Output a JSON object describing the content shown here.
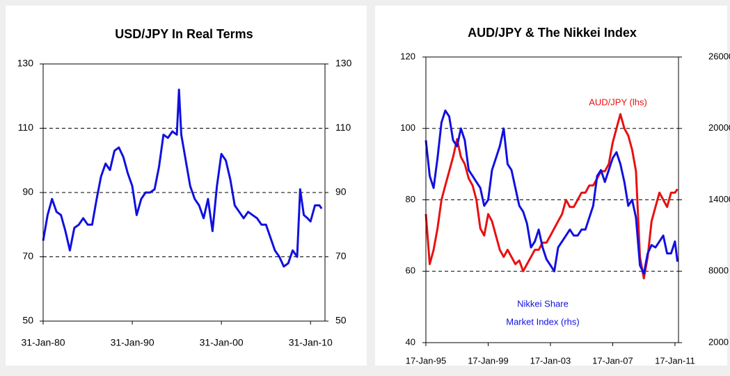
{
  "chart_data": [
    {
      "type": "line",
      "title": "USD/JPY In Real Terms",
      "x": [
        "1980-01-31",
        "1980-07-31",
        "1981-01-31",
        "1981-07-31",
        "1982-01-31",
        "1982-07-31",
        "1983-01-31",
        "1983-07-31",
        "1984-01-31",
        "1984-07-31",
        "1985-01-31",
        "1985-07-31",
        "1986-01-31",
        "1986-07-31",
        "1987-01-31",
        "1987-07-31",
        "1988-01-31",
        "1988-07-31",
        "1989-01-31",
        "1989-07-31",
        "1990-01-31",
        "1990-07-31",
        "1991-01-31",
        "1991-07-31",
        "1992-01-31",
        "1992-07-31",
        "1993-01-31",
        "1993-07-31",
        "1994-01-31",
        "1994-07-31",
        "1995-01-31",
        "1995-04-30",
        "1995-07-31",
        "1996-01-31",
        "1996-07-31",
        "1997-01-31",
        "1997-07-31",
        "1998-01-31",
        "1998-07-31",
        "1999-01-31",
        "1999-07-31",
        "2000-01-31",
        "2000-07-31",
        "2001-01-31",
        "2001-07-31",
        "2002-01-31",
        "2002-07-31",
        "2003-01-31",
        "2003-07-31",
        "2004-01-31",
        "2004-07-31",
        "2005-01-31",
        "2005-07-31",
        "2006-01-31",
        "2006-07-31",
        "2007-01-31",
        "2007-07-31",
        "2008-01-31",
        "2008-07-31",
        "2008-11-30",
        "2009-04-30",
        "2009-09-30",
        "2010-01-31",
        "2010-07-31",
        "2011-01-31",
        "2011-04-30"
      ],
      "series": [
        {
          "color": "#1010e0",
          "values": [
            75,
            83,
            88,
            84,
            83,
            78,
            72,
            79,
            80,
            82,
            80,
            80,
            88,
            95,
            99,
            97,
            103,
            104,
            101,
            96,
            92,
            83,
            88,
            90,
            90,
            91,
            98,
            108,
            107,
            109,
            108,
            122,
            108,
            100,
            92,
            88,
            86,
            82,
            88,
            78,
            92,
            102,
            100,
            94,
            86,
            84,
            82,
            84,
            83,
            82,
            80,
            80,
            76,
            72,
            70,
            67,
            68,
            72,
            70,
            91,
            83,
            82,
            81,
            86,
            86,
            85
          ]
        }
      ],
      "xlim": [
        "1980-01-31",
        "2011-09-15"
      ],
      "xticks": [
        {
          "value": "1980-01-31",
          "label": "31-Jan-80"
        },
        {
          "value": "1990-01-31",
          "label": "31-Jan-90"
        },
        {
          "value": "2000-01-31",
          "label": "31-Jan-00"
        },
        {
          "value": "2010-01-31",
          "label": "31-Jan-10"
        }
      ],
      "ylim": [
        50,
        130
      ],
      "yticks": [
        50,
        70,
        90,
        110,
        130
      ],
      "y2lim": [
        50,
        130
      ],
      "y2ticks": [
        50,
        70,
        90,
        110,
        130
      ],
      "grid": true
    },
    {
      "type": "line",
      "title": "AUD/JPY & The Nikkei Index",
      "x": [
        "1995-01-17",
        "1995-04-17",
        "1995-07-17",
        "1995-10-17",
        "1996-01-17",
        "1996-04-17",
        "1996-07-17",
        "1996-10-17",
        "1997-01-17",
        "1997-04-17",
        "1997-07-17",
        "1997-10-17",
        "1998-01-17",
        "1998-04-17",
        "1998-07-17",
        "1998-10-17",
        "1999-01-17",
        "1999-04-17",
        "1999-07-17",
        "1999-10-17",
        "2000-01-17",
        "2000-04-17",
        "2000-07-17",
        "2000-10-17",
        "2001-01-17",
        "2001-04-17",
        "2001-07-17",
        "2001-10-17",
        "2002-01-17",
        "2002-04-17",
        "2002-07-17",
        "2002-10-17",
        "2003-01-17",
        "2003-04-17",
        "2003-07-17",
        "2003-10-17",
        "2004-01-17",
        "2004-04-17",
        "2004-07-17",
        "2004-10-17",
        "2005-01-17",
        "2005-04-17",
        "2005-07-17",
        "2005-10-17",
        "2006-01-17",
        "2006-04-17",
        "2006-07-17",
        "2006-10-17",
        "2007-01-17",
        "2007-04-17",
        "2007-07-17",
        "2007-10-17",
        "2008-01-17",
        "2008-04-17",
        "2008-07-17",
        "2008-10-17",
        "2009-01-17",
        "2009-04-17",
        "2009-07-17",
        "2009-10-17",
        "2010-01-17",
        "2010-04-17",
        "2010-07-17",
        "2010-10-17",
        "2011-01-17",
        "2011-03-17"
      ],
      "series": [
        {
          "color": "#e81010",
          "values": [
            76,
            62,
            66,
            72,
            80,
            84,
            88,
            92,
            97,
            92,
            90,
            86,
            84,
            80,
            72,
            70,
            76,
            74,
            70,
            66,
            64,
            66,
            64,
            62,
            63,
            60,
            62,
            64,
            66,
            66,
            68,
            68,
            70,
            72,
            74,
            76,
            80,
            78,
            78,
            80,
            82,
            82,
            84,
            84,
            86,
            88,
            88,
            90,
            96,
            100,
            104,
            100,
            98,
            94,
            88,
            64,
            58,
            64,
            74,
            78,
            82,
            80,
            78,
            82,
            82,
            83
          ]
        },
        {
          "color": "#1010e0",
          "axis": "y2",
          "values": [
            19000,
            16000,
            15000,
            17500,
            20500,
            21500,
            21000,
            19000,
            18500,
            20000,
            19000,
            16500,
            16000,
            15500,
            15000,
            13500,
            14000,
            16500,
            17500,
            18500,
            20000,
            17000,
            16500,
            15000,
            13500,
            13000,
            12000,
            10000,
            10500,
            11500,
            10000,
            9000,
            8500,
            8000,
            10000,
            10500,
            11000,
            11500,
            11000,
            11000,
            11500,
            11500,
            12500,
            13500,
            16000,
            16500,
            15500,
            16500,
            17500,
            18000,
            17000,
            15500,
            13500,
            14000,
            12500,
            8500,
            7800,
            9500,
            10200,
            10000,
            10500,
            11000,
            9500,
            9500,
            10500,
            8800
          ]
        }
      ],
      "annotations": [
        "AUD/JPY (lhs)",
        "Nikkei Share",
        "Market Index (rhs)"
      ],
      "xlim": [
        "1995-01-17",
        "2011-04-10"
      ],
      "xticks": [
        {
          "value": "1995-01-17",
          "label": "17-Jan-95"
        },
        {
          "value": "1999-01-17",
          "label": "17-Jan-99"
        },
        {
          "value": "2003-01-17",
          "label": "17-Jan-03"
        },
        {
          "value": "2007-01-17",
          "label": "17-Jan-07"
        },
        {
          "value": "2011-01-17",
          "label": "17-Jan-11"
        }
      ],
      "ylim": [
        40,
        120
      ],
      "yticks": [
        40,
        60,
        80,
        100,
        120
      ],
      "y2lim": [
        2000,
        26000
      ],
      "y2ticks": [
        2000,
        8000,
        14000,
        20000,
        26000
      ],
      "grid": true
    }
  ]
}
